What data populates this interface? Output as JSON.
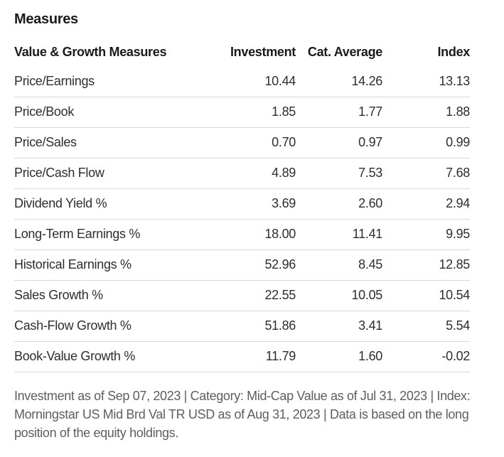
{
  "section": {
    "title": "Measures"
  },
  "table": {
    "columns": [
      "Value & Growth Measures",
      "Investment",
      "Cat. Average",
      "Index"
    ],
    "rows": [
      {
        "label": "Price/Earnings",
        "investment": "10.44",
        "cat_average": "14.26",
        "index": "13.13"
      },
      {
        "label": "Price/Book",
        "investment": "1.85",
        "cat_average": "1.77",
        "index": "1.88"
      },
      {
        "label": "Price/Sales",
        "investment": "0.70",
        "cat_average": "0.97",
        "index": "0.99"
      },
      {
        "label": "Price/Cash Flow",
        "investment": "4.89",
        "cat_average": "7.53",
        "index": "7.68"
      },
      {
        "label": "Dividend Yield %",
        "investment": "3.69",
        "cat_average": "2.60",
        "index": "2.94"
      },
      {
        "label": "Long-Term Earnings %",
        "investment": "18.00",
        "cat_average": "11.41",
        "index": "9.95"
      },
      {
        "label": "Historical Earnings %",
        "investment": "52.96",
        "cat_average": "8.45",
        "index": "12.85"
      },
      {
        "label": "Sales Growth %",
        "investment": "22.55",
        "cat_average": "10.05",
        "index": "10.54"
      },
      {
        "label": "Cash-Flow Growth %",
        "investment": "51.86",
        "cat_average": "3.41",
        "index": "5.54"
      },
      {
        "label": "Book-Value Growth %",
        "investment": "11.79",
        "cat_average": "1.60",
        "index": "-0.02"
      }
    ]
  },
  "footnote": "Investment as of Sep 07, 2023 | Category: Mid-Cap Value as of Jul 31, 2023 | Index: Morningstar US Mid Brd Val TR USD as of Aug 31, 2023 | Data is based on the long position of the equity holdings.",
  "colors": {
    "heading_text": "#1a1a1a",
    "body_text": "#2e2e2e",
    "footnote_text": "#5e5e5e",
    "row_divider": "#d8d8d8",
    "background": "#ffffff"
  }
}
